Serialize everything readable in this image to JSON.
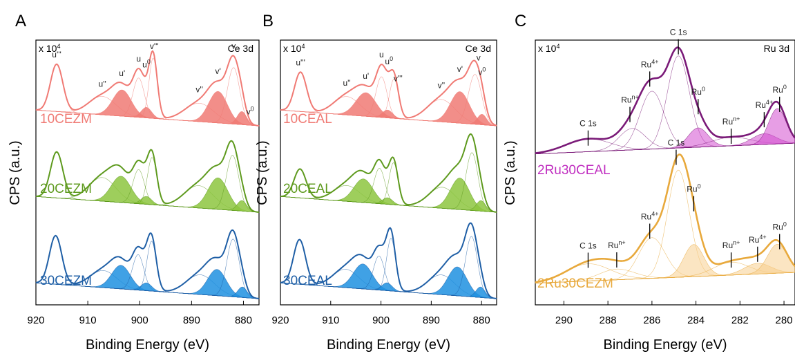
{
  "chart_data": [
    {
      "panel": "A",
      "type": "line",
      "ylabel": "CPS (a.u.)",
      "xlabel": "Binding Energy (eV)",
      "xlim": [
        920,
        877
      ],
      "x_ticks": [
        920,
        910,
        900,
        890,
        880
      ],
      "multiplier": "x 10",
      "multiplier_exp": "4",
      "region": "Ce 3d",
      "series": [
        {
          "name": "10CEZM",
          "color": "#f07a74",
          "fill": "#f07a74",
          "peaks": [
            {
              "x": 916.0,
              "h": 36,
              "w": 1.2
            },
            {
              "x": 907.2,
              "h": 14,
              "w": 2.6
            },
            {
              "x": 903.4,
              "h": 20,
              "w": 1.8
            },
            {
              "x": 900.2,
              "h": 30,
              "w": 1.1
            },
            {
              "x": 898.7,
              "h": 8,
              "w": 1.0
            },
            {
              "x": 897.4,
              "h": 46,
              "w": 0.8
            },
            {
              "x": 888.5,
              "h": 14,
              "w": 2.8
            },
            {
              "x": 884.9,
              "h": 24,
              "w": 1.8
            },
            {
              "x": 881.9,
              "h": 43,
              "w": 1.2
            },
            {
              "x": 880.3,
              "h": 10,
              "w": 0.9
            }
          ],
          "filled": [
            2,
            4,
            7,
            9
          ],
          "labels": [
            {
              "text": "u'''",
              "x": 916.0
            },
            {
              "text": "u''",
              "x": 907.2
            },
            {
              "text": "u'",
              "x": 903.4
            },
            {
              "text": "u",
              "x": 900.2
            },
            {
              "text": "u",
              "sup": "0",
              "x": 898.7
            },
            {
              "text": "v'''",
              "x": 897.2
            },
            {
              "text": "v''",
              "x": 888.5
            },
            {
              "text": "v'",
              "x": 884.9
            },
            {
              "text": "v",
              "x": 881.9
            },
            {
              "text": "v",
              "sup": "0",
              "x": 878.7
            }
          ]
        },
        {
          "name": "20CEZM",
          "color": "#5e9a1e",
          "fill": "#8dc63f",
          "peaks": [
            {
              "x": 916.0,
              "h": 35,
              "w": 1.2
            },
            {
              "x": 907.2,
              "h": 18,
              "w": 2.6
            },
            {
              "x": 903.6,
              "h": 20,
              "w": 1.9
            },
            {
              "x": 900.2,
              "h": 26,
              "w": 1.1
            },
            {
              "x": 898.7,
              "h": 6,
              "w": 1.0
            },
            {
              "x": 897.6,
              "h": 36,
              "w": 0.9
            },
            {
              "x": 888.6,
              "h": 17,
              "w": 2.8
            },
            {
              "x": 884.9,
              "h": 24,
              "w": 1.9
            },
            {
              "x": 882.1,
              "h": 42,
              "w": 1.2
            },
            {
              "x": 880.3,
              "h": 8,
              "w": 0.9
            }
          ],
          "filled": [
            2,
            4,
            7,
            9
          ]
        },
        {
          "name": "30CEZM",
          "color": "#1f5fa6",
          "fill": "#1e90e0",
          "peaks": [
            {
              "x": 916.2,
              "h": 37,
              "w": 1.2
            },
            {
              "x": 907.0,
              "h": 13,
              "w": 2.6
            },
            {
              "x": 903.6,
              "h": 18,
              "w": 1.8
            },
            {
              "x": 900.3,
              "h": 27,
              "w": 1.1
            },
            {
              "x": 898.7,
              "h": 6,
              "w": 1.0
            },
            {
              "x": 897.7,
              "h": 38,
              "w": 0.9
            },
            {
              "x": 888.3,
              "h": 15,
              "w": 2.7
            },
            {
              "x": 885.1,
              "h": 20,
              "w": 1.8
            },
            {
              "x": 882.0,
              "h": 44,
              "w": 1.2
            },
            {
              "x": 880.2,
              "h": 8,
              "w": 0.9
            }
          ],
          "filled": [
            2,
            4,
            7,
            9
          ]
        }
      ]
    },
    {
      "panel": "B",
      "type": "line",
      "ylabel": "CPS (a.u.)",
      "xlabel": "Binding Energy (eV)",
      "xlim": [
        920,
        877
      ],
      "x_ticks": [
        920,
        910,
        900,
        890,
        880
      ],
      "multiplier": "x 10",
      "multiplier_exp": "4",
      "region": "Ce 3d",
      "series": [
        {
          "name": "10CEAL",
          "color": "#f07a74",
          "fill": "#f07a74",
          "peaks": [
            {
              "x": 916.0,
              "h": 30,
              "w": 1.2
            },
            {
              "x": 906.8,
              "h": 14,
              "w": 2.6
            },
            {
              "x": 903.0,
              "h": 18,
              "w": 2.0
            },
            {
              "x": 899.9,
              "h": 31,
              "w": 1.1
            },
            {
              "x": 898.7,
              "h": 6,
              "w": 1.0
            },
            {
              "x": 897.4,
              "h": 30,
              "w": 0.9
            },
            {
              "x": 888.0,
              "h": 17,
              "w": 2.8
            },
            {
              "x": 884.3,
              "h": 24,
              "w": 1.9
            },
            {
              "x": 881.3,
              "h": 38,
              "w": 1.3
            },
            {
              "x": 879.9,
              "h": 8,
              "w": 0.9
            }
          ],
          "filled": [
            2,
            4,
            7,
            9
          ],
          "labels": [
            {
              "text": "u'''",
              "x": 916.0
            },
            {
              "text": "u''",
              "x": 906.8
            },
            {
              "text": "u'",
              "x": 903.0
            },
            {
              "text": "u",
              "x": 899.9
            },
            {
              "text": "u",
              "sup": "0",
              "x": 898.4
            },
            {
              "text": "v'''",
              "x": 896.6
            },
            {
              "text": "v''",
              "x": 888.0
            },
            {
              "text": "v'",
              "x": 884.3
            },
            {
              "text": "v",
              "x": 880.6
            },
            {
              "text": "v",
              "sup": "0",
              "x": 879.9
            }
          ]
        },
        {
          "name": "20CEAL",
          "color": "#5e9a1e",
          "fill": "#8dc63f",
          "peaks": [
            {
              "x": 916.1,
              "h": 22,
              "w": 1.2
            },
            {
              "x": 906.8,
              "h": 12,
              "w": 2.6
            },
            {
              "x": 903.5,
              "h": 18,
              "w": 1.9
            },
            {
              "x": 900.3,
              "h": 27,
              "w": 1.1
            },
            {
              "x": 898.7,
              "h": 5,
              "w": 1.0
            },
            {
              "x": 897.5,
              "h": 32,
              "w": 0.9
            },
            {
              "x": 887.8,
              "h": 16,
              "w": 2.7
            },
            {
              "x": 884.3,
              "h": 24,
              "w": 1.9
            },
            {
              "x": 881.9,
              "h": 44,
              "w": 1.2
            },
            {
              "x": 880.1,
              "h": 8,
              "w": 0.9
            }
          ],
          "filled": [
            2,
            4,
            7,
            9
          ]
        },
        {
          "name": "30CEAL",
          "color": "#1f5fa6",
          "fill": "#1e90e0",
          "peaks": [
            {
              "x": 916.2,
              "h": 34,
              "w": 1.2
            },
            {
              "x": 907.0,
              "h": 14,
              "w": 2.6
            },
            {
              "x": 903.6,
              "h": 19,
              "w": 1.9
            },
            {
              "x": 900.4,
              "h": 26,
              "w": 1.1
            },
            {
              "x": 898.8,
              "h": 6,
              "w": 1.0
            },
            {
              "x": 898.0,
              "h": 40,
              "w": 0.9
            },
            {
              "x": 888.0,
              "h": 15,
              "w": 2.7
            },
            {
              "x": 884.8,
              "h": 22,
              "w": 1.9
            },
            {
              "x": 882.0,
              "h": 46,
              "w": 1.2
            },
            {
              "x": 880.2,
              "h": 8,
              "w": 0.9
            }
          ],
          "filled": [
            2,
            4,
            7,
            9
          ]
        }
      ]
    },
    {
      "panel": "C",
      "type": "line",
      "ylabel": "CPS (a.u.)",
      "xlabel": "Binding Energy (eV)",
      "xlim": [
        291.3,
        279.5
      ],
      "x_ticks": [
        290,
        288,
        286,
        284,
        282,
        280
      ],
      "multiplier": "x 10",
      "multiplier_exp": "4",
      "region": "Ru 3d",
      "series": [
        {
          "name": "2Ru30CEAL",
          "color": "#7a1a78",
          "fill": "#d44fd0",
          "peaks": [
            {
              "x": 288.9,
              "h": 12,
              "w": 1.0
            },
            {
              "x": 286.9,
              "h": 20,
              "w": 0.6
            },
            {
              "x": 286.0,
              "h": 54,
              "w": 0.55
            },
            {
              "x": 284.8,
              "h": 86,
              "w": 0.5
            },
            {
              "x": 283.9,
              "h": 18,
              "w": 0.45
            },
            {
              "x": 282.4,
              "h": 8,
              "w": 0.9
            },
            {
              "x": 280.9,
              "h": 10,
              "w": 0.55
            },
            {
              "x": 280.3,
              "h": 33,
              "w": 0.4
            }
          ],
          "filled": [
            4,
            6,
            7
          ],
          "labels": [
            {
              "text": "C 1s",
              "x": 288.9
            },
            {
              "text": "Ru",
              "sup": "n+",
              "x": 287.0
            },
            {
              "text": "Ru",
              "sup": "4+",
              "x": 286.1
            },
            {
              "text": "C 1s",
              "x": 284.8
            },
            {
              "text": "Ru",
              "sup": "0",
              "x": 283.9
            },
            {
              "text": "Ru",
              "sup": "n+",
              "x": 282.4
            },
            {
              "text": "Ru",
              "sup": "4+",
              "x": 280.9
            },
            {
              "text": "Ru",
              "sup": "0",
              "x": 280.2
            }
          ]
        },
        {
          "name": "2Ru30CEZM",
          "color": "#e8a93c",
          "fill": "#f7cf8f",
          "peaks": [
            {
              "x": 288.9,
              "h": 16,
              "w": 1.0
            },
            {
              "x": 287.6,
              "h": 10,
              "w": 0.8
            },
            {
              "x": 286.0,
              "h": 38,
              "w": 0.6
            },
            {
              "x": 284.8,
              "h": 100,
              "w": 0.5
            },
            {
              "x": 284.1,
              "h": 30,
              "w": 0.45
            },
            {
              "x": 282.4,
              "h": 12,
              "w": 0.8
            },
            {
              "x": 281.2,
              "h": 10,
              "w": 0.6
            },
            {
              "x": 280.3,
              "h": 27,
              "w": 0.45
            }
          ],
          "filled": [
            4,
            6,
            7
          ],
          "labels": [
            {
              "text": "C 1s",
              "x": 288.9
            },
            {
              "text": "Ru",
              "sup": "n+",
              "x": 287.6
            },
            {
              "text": "Ru",
              "sup": "4+",
              "x": 286.1
            },
            {
              "text": "C 1s",
              "x": 284.9
            },
            {
              "text": "Ru",
              "sup": "0",
              "x": 284.1
            },
            {
              "text": "Ru",
              "sup": "n+",
              "x": 282.4
            },
            {
              "text": "Ru",
              "sup": "4+",
              "x": 281.2
            },
            {
              "text": "Ru",
              "sup": "0",
              "x": 280.2
            }
          ]
        }
      ]
    }
  ]
}
